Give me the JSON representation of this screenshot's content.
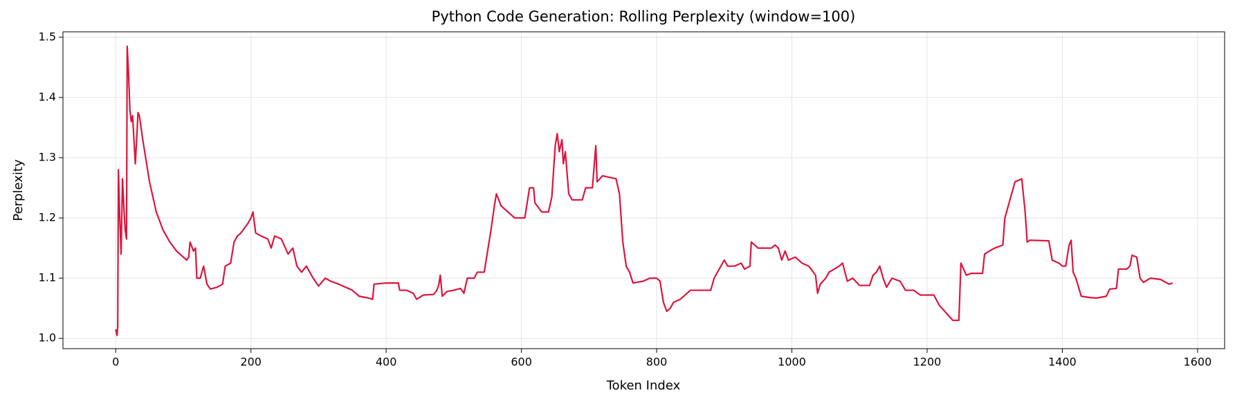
{
  "chart_data": {
    "type": "line",
    "title": "Python Code Generation: Rolling Perplexity (window=100)",
    "x_label": "Token Index",
    "y_label": "Perplexity",
    "x": [
      0,
      2,
      3,
      4,
      6,
      8,
      10,
      12,
      14,
      16,
      17,
      19,
      21,
      23,
      25,
      27,
      29,
      31,
      33,
      35,
      40,
      50,
      60,
      70,
      80,
      90,
      100,
      105,
      108,
      110,
      115,
      118,
      120,
      125,
      130,
      135,
      140,
      150,
      158,
      162,
      170,
      175,
      180,
      185,
      195,
      200,
      203,
      207,
      215,
      225,
      230,
      235,
      245,
      255,
      262,
      268,
      275,
      282,
      292,
      300,
      310,
      318,
      330,
      340,
      350,
      360,
      370,
      380,
      382,
      400,
      418,
      420,
      430,
      440,
      445,
      455,
      470,
      475,
      478,
      480,
      483,
      490,
      500,
      510,
      515,
      520,
      530,
      535,
      545,
      550,
      555,
      560,
      563,
      570,
      580,
      590,
      605,
      612,
      618,
      620,
      630,
      640,
      645,
      650,
      653,
      656,
      660,
      662,
      665,
      670,
      675,
      690,
      695,
      705,
      710,
      712,
      720,
      740,
      745,
      750,
      755,
      760,
      765,
      780,
      790,
      800,
      805,
      810,
      815,
      820,
      825,
      835,
      845,
      850,
      880,
      885,
      890,
      900,
      905,
      915,
      925,
      930,
      938,
      940,
      950,
      970,
      975,
      980,
      985,
      990,
      995,
      1005,
      1015,
      1025,
      1035,
      1038,
      1042,
      1050,
      1055,
      1070,
      1075,
      1082,
      1090,
      1100,
      1115,
      1120,
      1125,
      1130,
      1135,
      1140,
      1148,
      1160,
      1168,
      1180,
      1190,
      1210,
      1218,
      1230,
      1238,
      1247,
      1250,
      1258,
      1265,
      1282,
      1285,
      1292,
      1300,
      1312,
      1315,
      1320,
      1325,
      1330,
      1340,
      1345,
      1348,
      1352,
      1380,
      1385,
      1395,
      1400,
      1405,
      1410,
      1413,
      1416,
      1420,
      1428,
      1440,
      1450,
      1465,
      1470,
      1480,
      1483,
      1495,
      1500,
      1503,
      1510,
      1515,
      1520,
      1530,
      1545,
      1558,
      1563
    ],
    "series": [
      {
        "name": "Rolling Perplexity",
        "color": "#dc143c",
        "values": [
          1.015,
          1.005,
          1.02,
          1.28,
          1.2,
          1.14,
          1.265,
          1.22,
          1.18,
          1.165,
          1.485,
          1.44,
          1.38,
          1.36,
          1.37,
          1.33,
          1.29,
          1.33,
          1.375,
          1.37,
          1.33,
          1.26,
          1.21,
          1.18,
          1.16,
          1.145,
          1.135,
          1.13,
          1.135,
          1.16,
          1.145,
          1.15,
          1.1,
          1.1,
          1.12,
          1.09,
          1.082,
          1.085,
          1.09,
          1.12,
          1.125,
          1.16,
          1.17,
          1.175,
          1.19,
          1.2,
          1.21,
          1.175,
          1.17,
          1.165,
          1.15,
          1.17,
          1.165,
          1.14,
          1.15,
          1.12,
          1.11,
          1.12,
          1.1,
          1.087,
          1.1,
          1.095,
          1.09,
          1.085,
          1.08,
          1.07,
          1.068,
          1.065,
          1.09,
          1.092,
          1.092,
          1.08,
          1.08,
          1.075,
          1.065,
          1.072,
          1.073,
          1.08,
          1.09,
          1.105,
          1.07,
          1.078,
          1.08,
          1.083,
          1.075,
          1.1,
          1.1,
          1.11,
          1.11,
          1.145,
          1.18,
          1.22,
          1.24,
          1.22,
          1.21,
          1.2,
          1.2,
          1.25,
          1.25,
          1.225,
          1.21,
          1.21,
          1.235,
          1.32,
          1.34,
          1.31,
          1.33,
          1.29,
          1.31,
          1.24,
          1.23,
          1.23,
          1.25,
          1.25,
          1.32,
          1.26,
          1.27,
          1.265,
          1.24,
          1.16,
          1.12,
          1.11,
          1.092,
          1.095,
          1.1,
          1.1,
          1.095,
          1.06,
          1.045,
          1.05,
          1.06,
          1.065,
          1.075,
          1.08,
          1.08,
          1.1,
          1.11,
          1.13,
          1.12,
          1.12,
          1.125,
          1.115,
          1.12,
          1.16,
          1.15,
          1.15,
          1.155,
          1.15,
          1.13,
          1.145,
          1.13,
          1.135,
          1.125,
          1.12,
          1.105,
          1.075,
          1.09,
          1.1,
          1.11,
          1.12,
          1.125,
          1.095,
          1.1,
          1.088,
          1.088,
          1.105,
          1.11,
          1.12,
          1.1,
          1.085,
          1.1,
          1.095,
          1.08,
          1.08,
          1.072,
          1.072,
          1.055,
          1.04,
          1.03,
          1.03,
          1.125,
          1.105,
          1.108,
          1.108,
          1.14,
          1.145,
          1.15,
          1.155,
          1.2,
          1.22,
          1.24,
          1.26,
          1.265,
          1.21,
          1.16,
          1.163,
          1.162,
          1.13,
          1.125,
          1.12,
          1.12,
          1.155,
          1.163,
          1.11,
          1.1,
          1.07,
          1.068,
          1.067,
          1.07,
          1.082,
          1.083,
          1.115,
          1.115,
          1.12,
          1.138,
          1.135,
          1.1,
          1.093,
          1.1,
          1.098,
          1.09,
          1.092
        ]
      }
    ],
    "xlim": [
      -78,
      1640
    ],
    "ylim": [
      0.983,
      1.509
    ],
    "xticks": [
      0,
      200,
      400,
      600,
      800,
      1000,
      1200,
      1400,
      1600
    ],
    "yticks": [
      {
        "value": 1,
        "label": "1.0"
      },
      1.1,
      1.2,
      1.3,
      1.4,
      1.5
    ],
    "grid": true
  }
}
